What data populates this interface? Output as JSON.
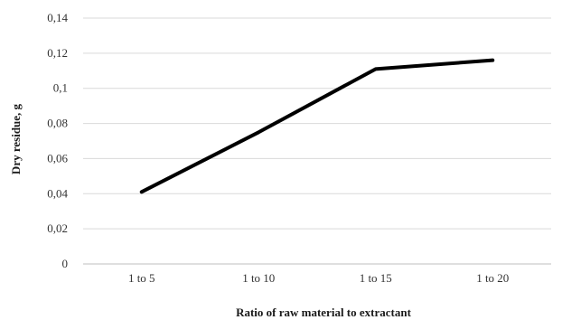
{
  "chart_data": {
    "type": "line",
    "title": "",
    "xlabel": "Ratio of raw material to extractant",
    "ylabel": "Dry residue, g",
    "categories": [
      "1 to 5",
      "1 to 10",
      "1 to 15",
      "1 to 20"
    ],
    "series": [
      {
        "values": [
          0.041,
          0.075,
          0.111,
          0.116
        ]
      }
    ],
    "ylim": [
      0,
      0.14
    ],
    "yticks": [
      "0",
      "0,02",
      "0,04",
      "0,06",
      "0,08",
      "0,1",
      "0,12",
      "0,14"
    ],
    "grid": true,
    "legend": "none",
    "colors": {
      "line": "#000000",
      "grid": "#d9d9d9",
      "axis": "#bfbfbf"
    }
  }
}
